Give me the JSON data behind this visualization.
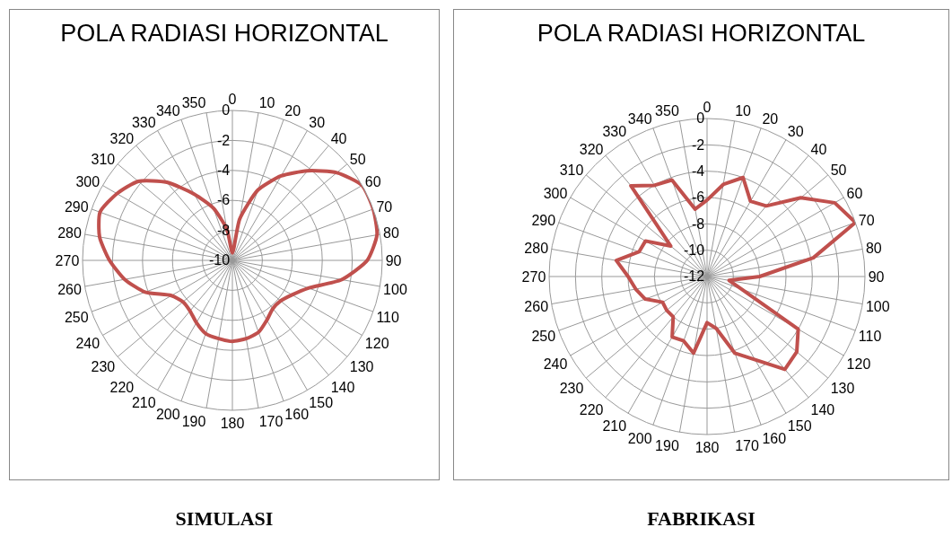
{
  "chart_data": [
    {
      "type": "radar",
      "title": "POLA RADIASI HORIZONTAL",
      "annotations": [
        "SIMULASI"
      ],
      "categories": [
        "0",
        "10",
        "20",
        "30",
        "40",
        "50",
        "60",
        "70",
        "80",
        "90",
        "100",
        "110",
        "120",
        "130",
        "140",
        "150",
        "160",
        "170",
        "180",
        "190",
        "200",
        "210",
        "220",
        "230",
        "240",
        "250",
        "260",
        "270",
        "280",
        "290",
        "300",
        "310",
        "320",
        "330",
        "340",
        "350"
      ],
      "series": [
        {
          "color": "#c0504d",
          "values": [
            -9.5,
            -7.2,
            -5,
            -3.5,
            -2.2,
            -0.9,
            0,
            0,
            -0.2,
            -1,
            -2.6,
            -4.6,
            -5.4,
            -5.8,
            -5.8,
            -5.4,
            -4.9,
            -4.7,
            -4.6,
            -4.7,
            -4.8,
            -5.2,
            -5.6,
            -5.7,
            -5.3,
            -3.8,
            -2.7,
            -1.8,
            -1,
            -0.6,
            -1.1,
            -1.8,
            -3.2,
            -4.9,
            -6.3,
            -7.9
          ]
        }
      ],
      "ylim": [
        -10,
        0
      ],
      "yticks": [
        -10,
        -8,
        -6,
        -4,
        -2,
        0
      ],
      "grid": true,
      "line_style": "solid",
      "marker": "none"
    },
    {
      "type": "radar",
      "title": "POLA RADIASI HORIZONTAL",
      "annotations": [
        "FABRIKASI"
      ],
      "categories": [
        "0",
        "10",
        "20",
        "30",
        "40",
        "50",
        "60",
        "70",
        "80",
        "90",
        "100",
        "110",
        "120",
        "130",
        "140",
        "150",
        "160",
        "170",
        "180",
        "190",
        "200",
        "210",
        "220",
        "230",
        "240",
        "250",
        "260",
        "270",
        "280",
        "290",
        "300",
        "310",
        "320",
        "330",
        "340",
        "350"
      ],
      "series": [
        {
          "color": "#c0504d",
          "values": [
            -6.2,
            -4.9,
            -4,
            -5.4,
            -5,
            -2.7,
            -0.8,
            0,
            -3.8,
            -8,
            -10.3,
            -9.2,
            -4,
            -3.1,
            -2.8,
            -4.7,
            -5.8,
            -8,
            -8.5,
            -6.1,
            -6.8,
            -6.7,
            -8,
            -8,
            -8.1,
            -7,
            -6.5,
            -6,
            -5,
            -6.5,
            -6.6,
            -8.4,
            -3,
            -4,
            -4.2,
            -6.8
          ]
        }
      ],
      "ylim": [
        -12,
        0
      ],
      "yticks": [
        -12,
        -10,
        -8,
        -6,
        -4,
        -2,
        0
      ],
      "grid": true,
      "line_style": "solid",
      "marker": "none"
    }
  ]
}
